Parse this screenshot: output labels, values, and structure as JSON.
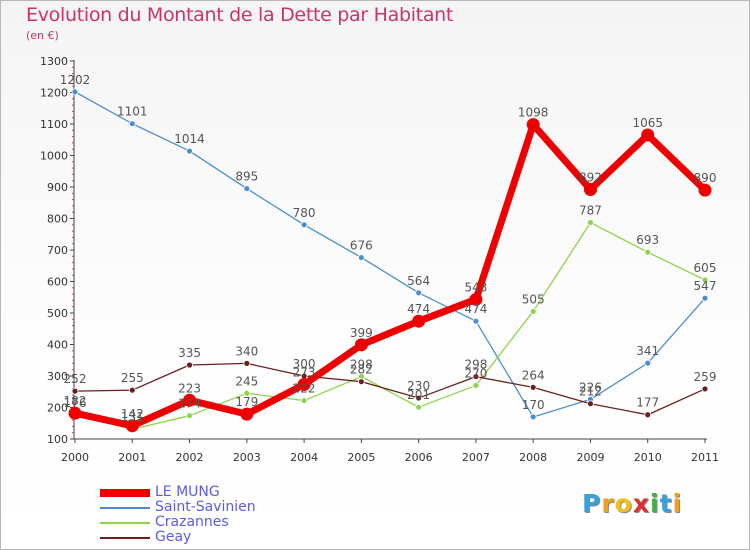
{
  "title": "Evolution du Montant de la Dette par Habitant",
  "subtitle": "(en €)",
  "logo": {
    "text": "Proxiti",
    "letters": [
      {
        "ch": "P",
        "color": "#3aa0d8"
      },
      {
        "ch": "r",
        "color": "#f0a020"
      },
      {
        "ch": "o",
        "color": "#f0c020"
      },
      {
        "ch": "x",
        "color": "#e03030"
      },
      {
        "ch": "i",
        "color": "#40b040"
      },
      {
        "ch": "t",
        "color": "#3aa0d8"
      },
      {
        "ch": "i",
        "color": "#f0a020"
      }
    ]
  },
  "chart_data": {
    "type": "line",
    "x": [
      "2000",
      "2001",
      "2002",
      "2003",
      "2004",
      "2005",
      "2006",
      "2007",
      "2008",
      "2009",
      "2010",
      "2011"
    ],
    "ylim": [
      100,
      1300
    ],
    "yticks": [
      100,
      200,
      300,
      400,
      500,
      600,
      700,
      800,
      900,
      1000,
      1100,
      1200,
      1300
    ],
    "grid": false,
    "legend_position": "bottom-left",
    "series": [
      {
        "name": "Saint-Savinien",
        "color": "#4a8fcc",
        "values": [
          1202,
          1101,
          1014,
          895,
          780,
          676,
          564,
          474,
          170,
          226,
          341,
          547
        ]
      },
      {
        "name": "Crazannes",
        "color": "#8cd44a",
        "values": [
          176,
          131,
          174,
          245,
          222,
          298,
          201,
          270,
          505,
          787,
          693,
          605
        ]
      },
      {
        "name": "Geay",
        "color": "#6b1e1e",
        "values": [
          252,
          255,
          335,
          340,
          300,
          282,
          230,
          298,
          264,
          212,
          177,
          259
        ]
      },
      {
        "name": "LE MUNG",
        "color": "#ee0000",
        "values": [
          182,
          142,
          223,
          179,
          273,
          399,
          474,
          543,
          1098,
          892,
          1065,
          890
        ]
      }
    ],
    "legend_order": [
      "LE MUNG",
      "Saint-Savinien",
      "Crazannes",
      "Geay"
    ]
  }
}
